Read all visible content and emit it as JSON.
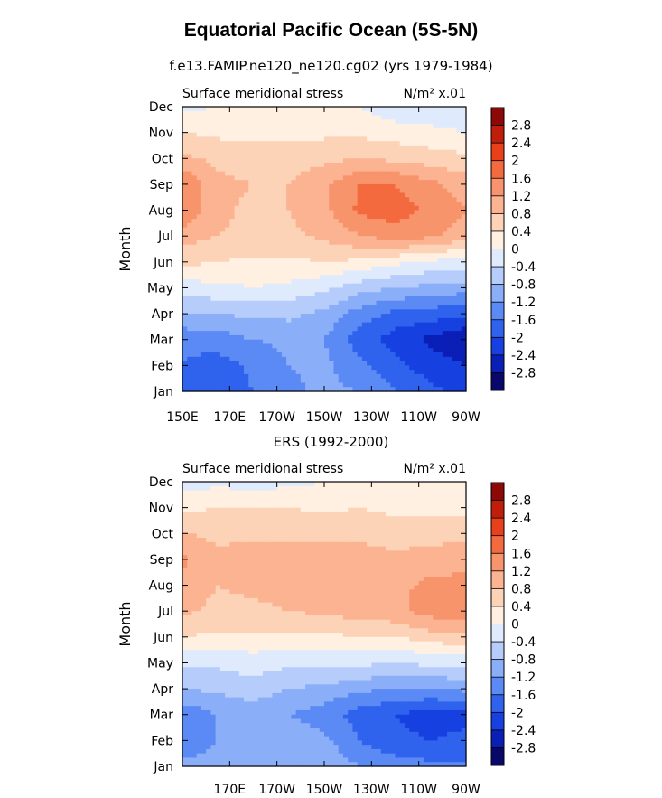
{
  "title": "Equatorial Pacific Ocean (5S-5N)",
  "colors": {
    "scale": [
      "#08086b",
      "#0a1fb5",
      "#1641e0",
      "#2f63ee",
      "#5b8af5",
      "#8aaef8",
      "#b6cdfb",
      "#dfeafd",
      "#fff0e2",
      "#fdd3b8",
      "#fbb391",
      "#f8946c",
      "#f46a3f",
      "#e8401a",
      "#c01e0a",
      "#8d0908"
    ]
  },
  "chart_data": [
    {
      "type": "heatmap",
      "title": "f.e13.FAMIP.ne120_ne120.cg02 (yrs 1979-1984)",
      "left_label": "Surface meridional stress",
      "right_label": "N/m² x.01",
      "ylabel": "Month",
      "xticks": [
        "150E",
        "170E",
        "170W",
        "150W",
        "130W",
        "110W",
        "90W"
      ],
      "yticks": [
        "Jan",
        "Feb",
        "Mar",
        "Apr",
        "May",
        "Jun",
        "Jul",
        "Aug",
        "Sep",
        "Oct",
        "Nov",
        "Dec"
      ],
      "xlim": [
        150,
        270
      ],
      "ylim": [
        0,
        11
      ],
      "levels": [
        "2.8",
        "2.4",
        "2",
        "1.6",
        "1.2",
        "0.8",
        "0.4",
        "0",
        "-0.4",
        "-0.8",
        "-1.2",
        "-1.6",
        "-2",
        "-2.4",
        "-2.8"
      ],
      "grid_lon": [
        150,
        165,
        180,
        195,
        210,
        225,
        240,
        255,
        270
      ],
      "values": [
        [
          -1.7,
          -2.0,
          -1.6,
          -1.3,
          -1.1,
          -1.2,
          -1.6,
          -1.9,
          -2.1
        ],
        [
          -1.6,
          -1.8,
          -1.5,
          -1.2,
          -1.1,
          -1.5,
          -1.9,
          -2.2,
          -2.4
        ],
        [
          -1.5,
          -1.4,
          -1.2,
          -1.1,
          -1.2,
          -1.8,
          -2.2,
          -2.5,
          -2.8
        ],
        [
          -0.8,
          -0.8,
          -0.7,
          -0.7,
          -0.9,
          -1.4,
          -1.7,
          -1.8,
          -1.9
        ],
        [
          -0.2,
          -0.1,
          0.0,
          -0.1,
          -0.3,
          -0.6,
          -0.8,
          -0.9,
          -1.0
        ],
        [
          0.5,
          0.4,
          0.3,
          0.3,
          0.4,
          0.3,
          0.1,
          -0.1,
          -0.2
        ],
        [
          1.0,
          0.8,
          0.7,
          0.7,
          0.9,
          1.2,
          1.4,
          1.3,
          1.0
        ],
        [
          1.6,
          0.9,
          0.7,
          0.8,
          1.1,
          1.7,
          1.8,
          1.5,
          1.2
        ],
        [
          1.6,
          0.9,
          0.8,
          0.8,
          1.1,
          1.6,
          1.6,
          1.3,
          1.0
        ],
        [
          0.9,
          0.7,
          0.6,
          0.6,
          0.7,
          0.8,
          0.7,
          0.6,
          0.5
        ],
        [
          0.4,
          0.3,
          0.3,
          0.3,
          0.3,
          0.3,
          0.2,
          0.1,
          0.0
        ],
        [
          -0.1,
          0.0,
          0.1,
          0.1,
          0.1,
          0.0,
          -0.3,
          -0.3,
          -0.3
        ]
      ]
    },
    {
      "type": "heatmap",
      "title": "ERS (1992-2000)",
      "left_label": "Surface meridional stress",
      "right_label": "N/m² x.01",
      "ylabel": "Month",
      "xticks": [
        "",
        "170E",
        "170W",
        "150W",
        "130W",
        "110W",
        "90W"
      ],
      "yticks": [
        "Jan",
        "Feb",
        "Mar",
        "Apr",
        "May",
        "Jun",
        "Jul",
        "Aug",
        "Sep",
        "Oct",
        "Nov",
        "Dec"
      ],
      "xlim": [
        150,
        270
      ],
      "ylim": [
        0,
        11
      ],
      "levels": [
        "2.8",
        "2.4",
        "2",
        "1.6",
        "1.2",
        "0.8",
        "0.4",
        "0",
        "-0.4",
        "-0.8",
        "-1.2",
        "-1.6",
        "-2",
        "-2.4",
        "-2.8"
      ],
      "grid_lon": [
        150,
        165,
        180,
        195,
        210,
        225,
        240,
        255,
        270
      ],
      "values": [
        [
          -1.1,
          -1.0,
          -0.8,
          -0.8,
          -0.9,
          -1.2,
          -1.4,
          -1.5,
          -1.5
        ],
        [
          -1.5,
          -1.2,
          -0.9,
          -0.9,
          -1.1,
          -1.6,
          -1.9,
          -2.0,
          -1.9
        ],
        [
          -1.5,
          -1.2,
          -1.0,
          -1.2,
          -1.4,
          -1.8,
          -2.0,
          -2.2,
          -2.1
        ],
        [
          -0.8,
          -0.7,
          -0.6,
          -0.8,
          -0.9,
          -1.1,
          -1.2,
          -1.2,
          -1.1
        ],
        [
          -0.3,
          -0.3,
          -0.2,
          -0.3,
          -0.3,
          -0.3,
          -0.4,
          -0.3,
          -0.3
        ],
        [
          0.4,
          0.3,
          0.3,
          0.3,
          0.3,
          0.4,
          0.4,
          0.6,
          0.7
        ],
        [
          0.9,
          0.7,
          0.7,
          0.8,
          0.9,
          1.0,
          1.1,
          1.4,
          1.5
        ],
        [
          1.0,
          0.8,
          0.9,
          1.0,
          1.1,
          1.2,
          1.1,
          1.3,
          1.3
        ],
        [
          1.3,
          0.9,
          1.0,
          1.0,
          1.1,
          1.0,
          0.9,
          1.0,
          1.1
        ],
        [
          0.8,
          0.7,
          0.7,
          0.7,
          0.7,
          0.7,
          0.6,
          0.6,
          0.7
        ],
        [
          0.3,
          0.4,
          0.4,
          0.4,
          0.3,
          0.4,
          0.3,
          0.3,
          0.3
        ],
        [
          -0.2,
          -0.1,
          -0.2,
          -0.1,
          0.0,
          0.0,
          0.0,
          0.1,
          0.1
        ]
      ]
    }
  ]
}
